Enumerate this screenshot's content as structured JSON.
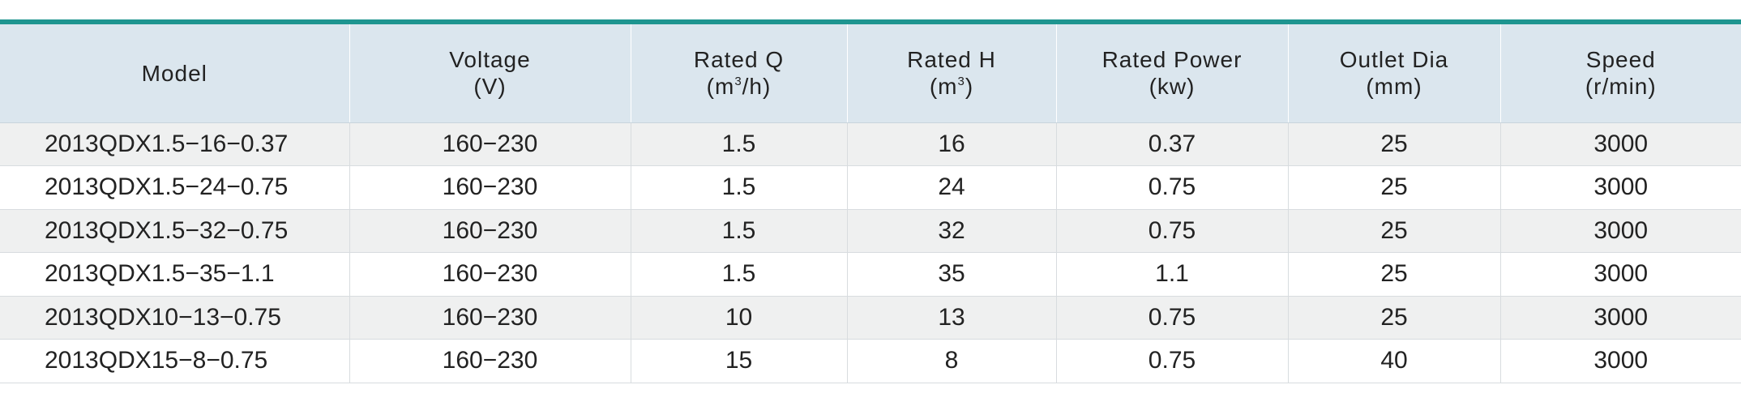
{
  "table": {
    "headers": [
      {
        "label": "Model",
        "unit": "",
        "unit_sup": "",
        "unit_tail": ""
      },
      {
        "label": "Voltage",
        "unit": "(V)",
        "unit_sup": "",
        "unit_tail": ""
      },
      {
        "label": "Rated Q",
        "unit": "(m",
        "unit_sup": "3",
        "unit_tail": "/h)"
      },
      {
        "label": "Rated H",
        "unit": "(m",
        "unit_sup": "3",
        "unit_tail": ")"
      },
      {
        "label": "Rated Power",
        "unit": "(kw)",
        "unit_sup": "",
        "unit_tail": ""
      },
      {
        "label": "Outlet Dia",
        "unit": "(mm)",
        "unit_sup": "",
        "unit_tail": ""
      },
      {
        "label": "Speed",
        "unit": "(r/min)",
        "unit_sup": "",
        "unit_tail": ""
      }
    ],
    "rows": [
      {
        "model": "2013QDX1.5−16−0.37",
        "voltage": "160−230",
        "rated_q": "1.5",
        "rated_h": "16",
        "rated_power": "0.37",
        "outlet_dia": "25",
        "speed": "3000"
      },
      {
        "model": "2013QDX1.5−24−0.75",
        "voltage": "160−230",
        "rated_q": "1.5",
        "rated_h": "24",
        "rated_power": "0.75",
        "outlet_dia": "25",
        "speed": "3000"
      },
      {
        "model": "2013QDX1.5−32−0.75",
        "voltage": "160−230",
        "rated_q": "1.5",
        "rated_h": "32",
        "rated_power": "0.75",
        "outlet_dia": "25",
        "speed": "3000"
      },
      {
        "model": "2013QDX1.5−35−1.1",
        "voltage": "160−230",
        "rated_q": "1.5",
        "rated_h": "35",
        "rated_power": "1.1",
        "outlet_dia": "25",
        "speed": "3000"
      },
      {
        "model": "2013QDX10−13−0.75",
        "voltage": "160−230",
        "rated_q": "10",
        "rated_h": "13",
        "rated_power": "0.75",
        "outlet_dia": "25",
        "speed": "3000"
      },
      {
        "model": "2013QDX15−8−0.75",
        "voltage": "160−230",
        "rated_q": "15",
        "rated_h": "8",
        "rated_power": "0.75",
        "outlet_dia": "40",
        "speed": "3000"
      }
    ]
  },
  "colors": {
    "accent_rule": "#1e9590",
    "header_bg": "#dbe6ee",
    "row_shade": "#eff0f0"
  }
}
